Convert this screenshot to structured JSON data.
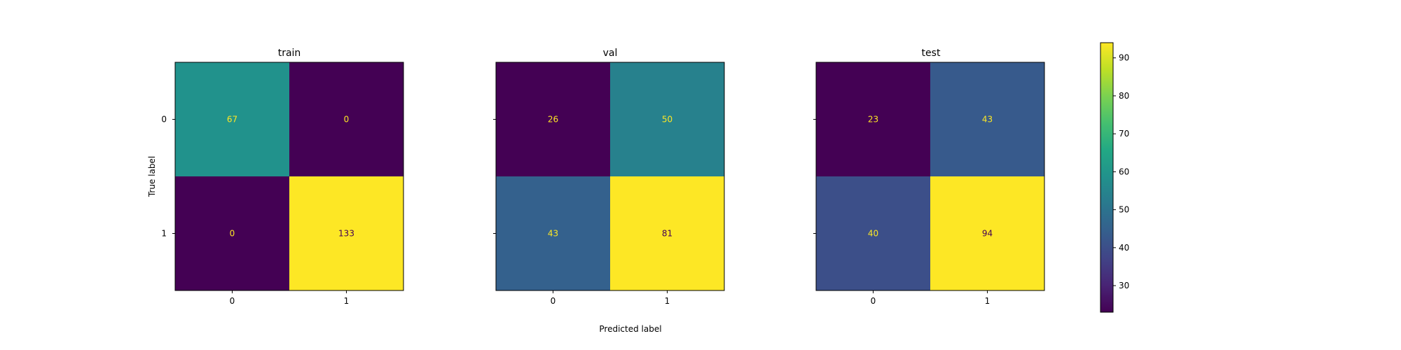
{
  "chart_data": {
    "type": "heatmap",
    "xlabel": "Predicted label",
    "ylabel": "True label",
    "x_tick_labels": [
      "0",
      "1"
    ],
    "y_tick_labels": [
      "0",
      "1"
    ],
    "colormap": "viridis",
    "colorbar": {
      "min": 23,
      "max": 94,
      "ticks": [
        30,
        40,
        50,
        60,
        70,
        80,
        90
      ]
    },
    "panels": [
      {
        "title": "train",
        "matrix": [
          [
            67,
            0
          ],
          [
            0,
            133
          ]
        ]
      },
      {
        "title": "val",
        "matrix": [
          [
            26,
            50
          ],
          [
            43,
            81
          ]
        ]
      },
      {
        "title": "test",
        "matrix": [
          [
            23,
            43
          ],
          [
            40,
            94
          ]
        ]
      }
    ]
  }
}
